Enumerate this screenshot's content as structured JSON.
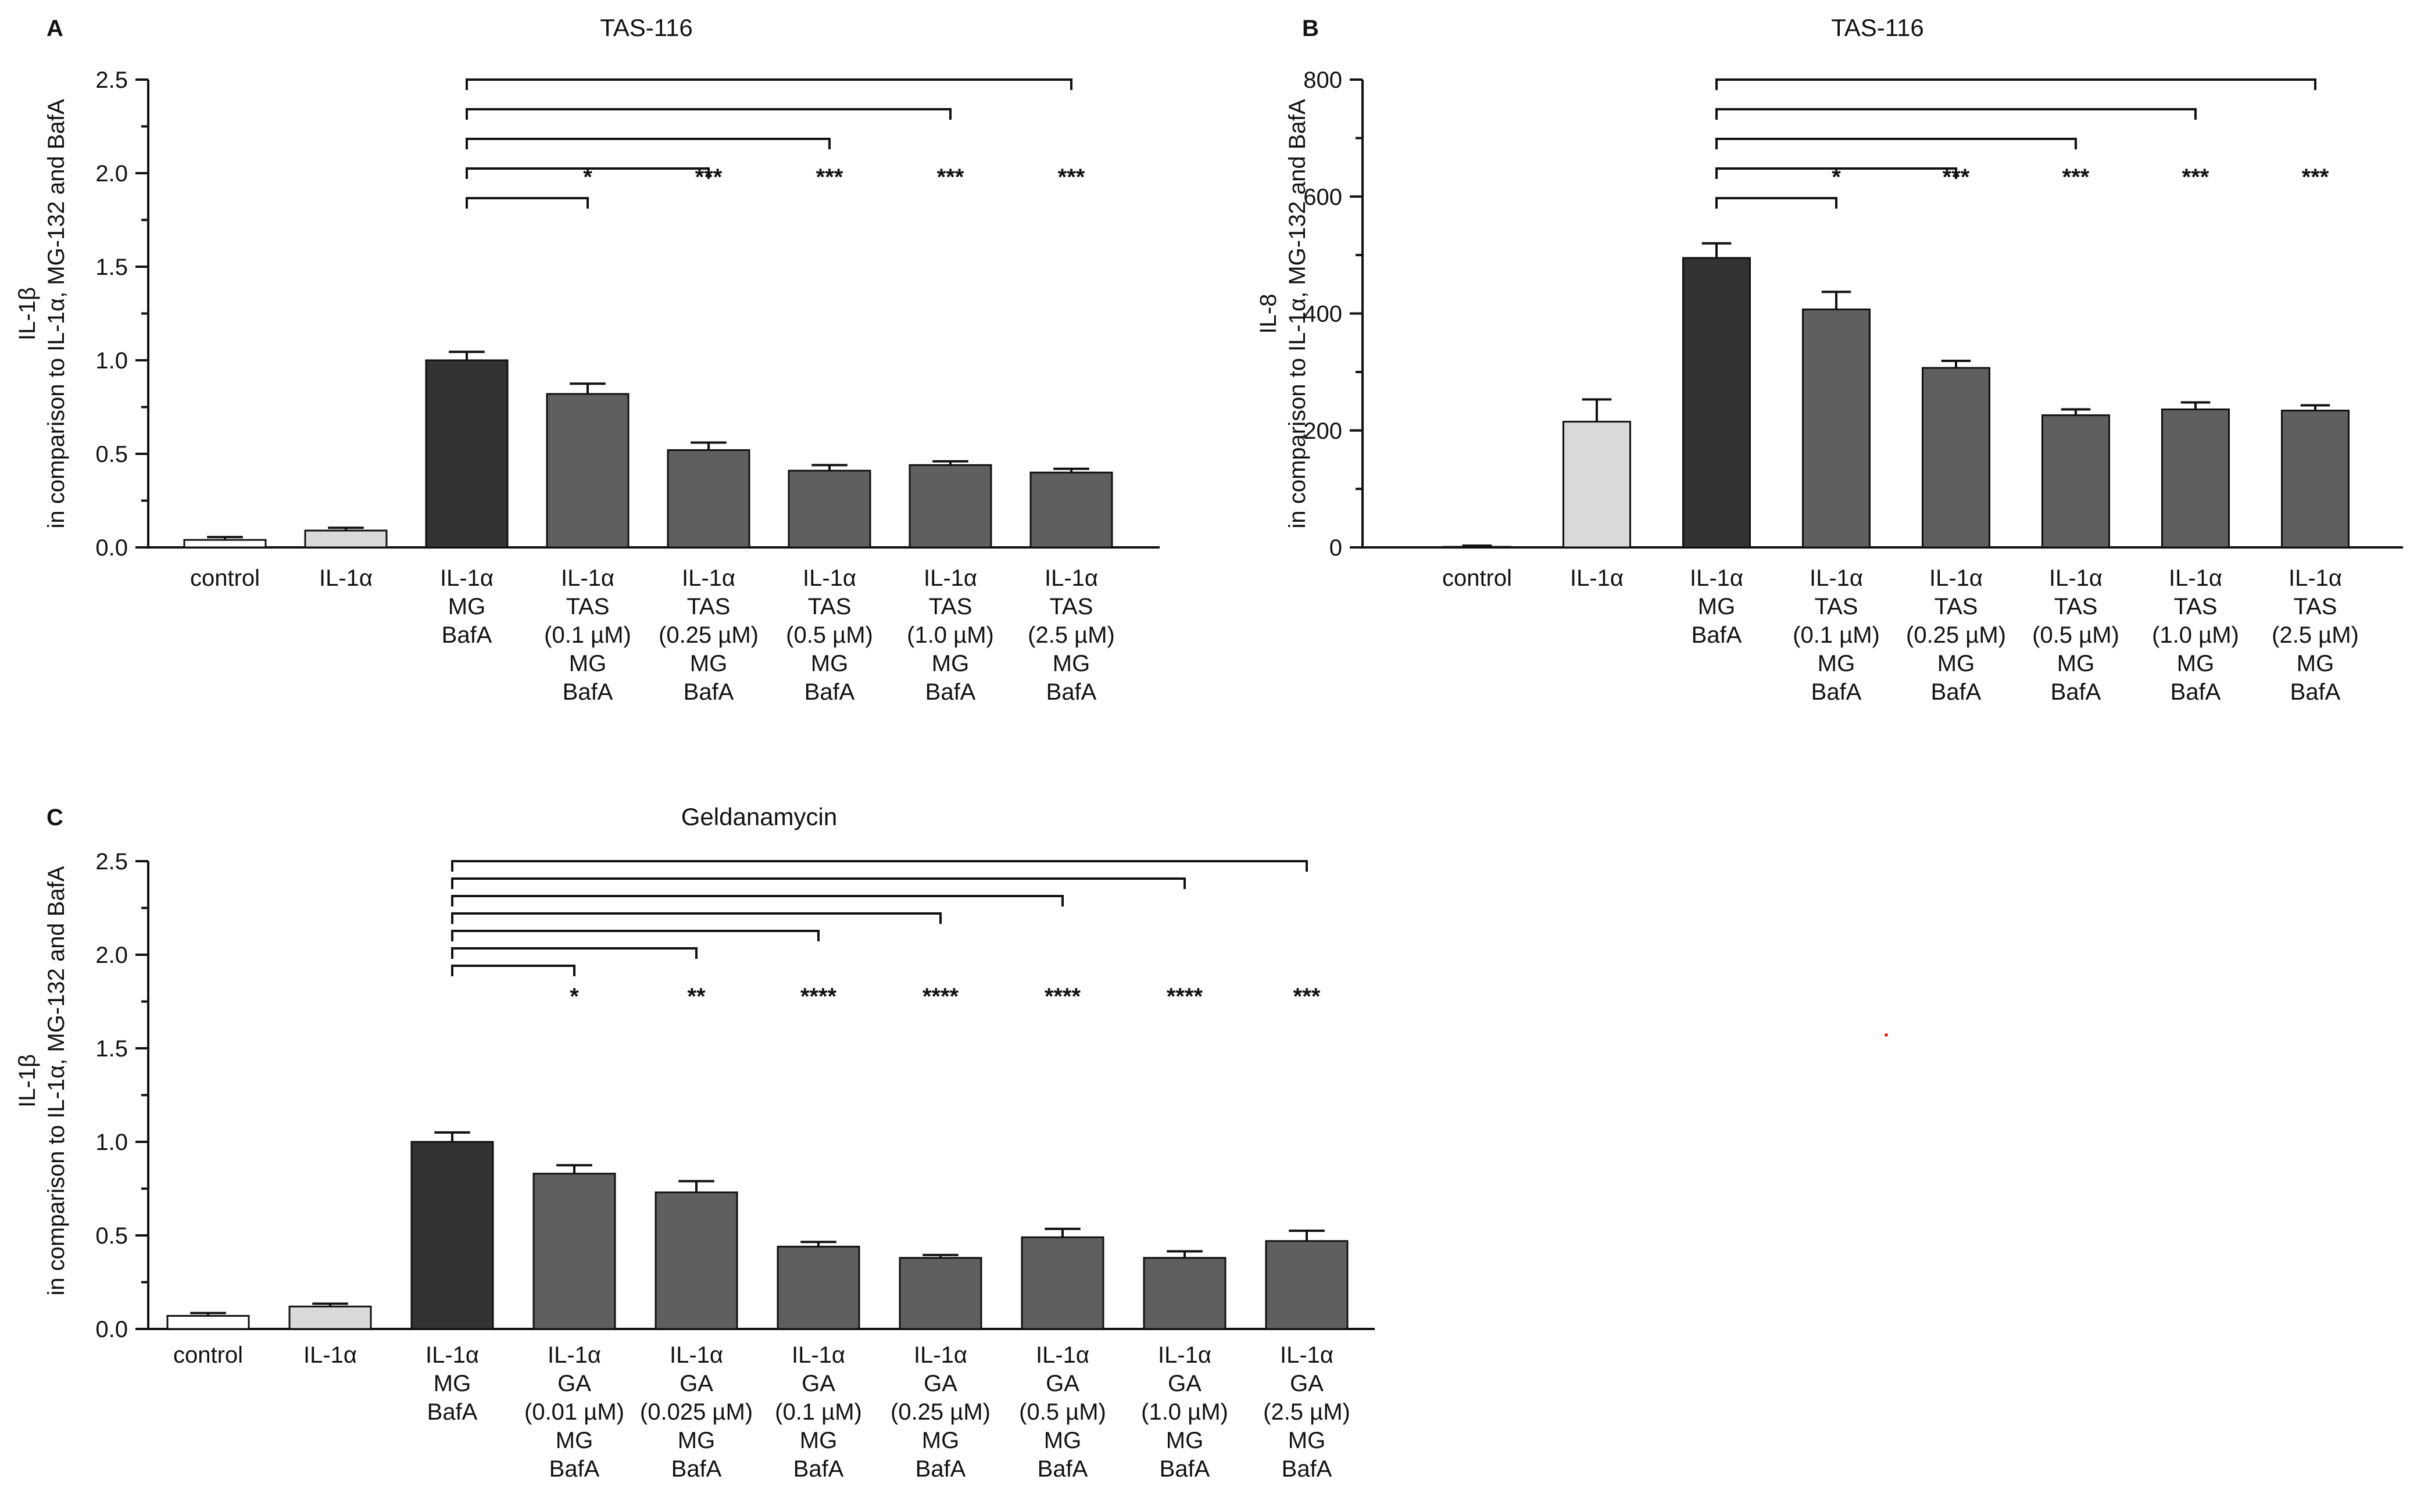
{
  "chart_data": [
    {
      "panel": "A",
      "type": "bar",
      "title": "TAS-116",
      "ylabel": [
        "IL-1β",
        "in comparison to IL-1α, MG-132 and BafA"
      ],
      "ylim": [
        0,
        2.5
      ],
      "yticks": [
        "0.0",
        "0.5",
        "1.0",
        "1.5",
        "2.0",
        "2.5"
      ],
      "categories": [
        [
          "control"
        ],
        [
          "IL-1α"
        ],
        [
          "IL-1α",
          "MG",
          "BafA"
        ],
        [
          "IL-1α",
          "TAS",
          "(0.1 µM)",
          "MG",
          "BafA"
        ],
        [
          "IL-1α",
          "TAS",
          "(0.25 µM)",
          "MG",
          "BafA"
        ],
        [
          "IL-1α",
          "TAS",
          "(0.5 µM)",
          "MG",
          "BafA"
        ],
        [
          "IL-1α",
          "TAS",
          "(1.0 µM)",
          "MG",
          "BafA"
        ],
        [
          "IL-1α",
          "TAS",
          "(2.5 µM)",
          "MG",
          "BafA"
        ]
      ],
      "values": [
        0.04,
        0.09,
        1.0,
        0.82,
        0.52,
        0.41,
        0.44,
        0.4
      ],
      "errors": [
        0.015,
        0.015,
        0.045,
        0.055,
        0.04,
        0.03,
        0.02,
        0.02
      ],
      "bar_colors": [
        "#ffffff",
        "#d9d9d9",
        "#333333",
        "#5f5f5f",
        "#5f5f5f",
        "#5f5f5f",
        "#5f5f5f",
        "#5f5f5f"
      ],
      "significance": [
        "",
        "",
        "",
        "*",
        "***",
        "***",
        "***",
        "***"
      ],
      "comparisons": [
        [
          2,
          3
        ],
        [
          2,
          4
        ],
        [
          2,
          5
        ],
        [
          2,
          6
        ],
        [
          2,
          7
        ]
      ]
    },
    {
      "panel": "B",
      "type": "bar",
      "title": "TAS-116",
      "ylabel": [
        "IL-8",
        "in comparison to IL-1α, MG-132 and BafA"
      ],
      "ylim": [
        0,
        800
      ],
      "yticks": [
        "0",
        "200",
        "400",
        "600",
        "800"
      ],
      "categories": [
        [
          "control"
        ],
        [
          "IL-1α"
        ],
        [
          "IL-1α",
          "MG",
          "BafA"
        ],
        [
          "IL-1α",
          "TAS",
          "(0.1 µM)",
          "MG",
          "BafA"
        ],
        [
          "IL-1α",
          "TAS",
          "(0.25 µM)",
          "MG",
          "BafA"
        ],
        [
          "IL-1α",
          "TAS",
          "(0.5 µM)",
          "MG",
          "BafA"
        ],
        [
          "IL-1α",
          "TAS",
          "(1.0 µM)",
          "MG",
          "BafA"
        ],
        [
          "IL-1α",
          "TAS",
          "(2.5 µM)",
          "MG",
          "BafA"
        ]
      ],
      "values": [
        1,
        215,
        495,
        407,
        307,
        226,
        236,
        234
      ],
      "errors": [
        2,
        38,
        25,
        30,
        12,
        10,
        12,
        9
      ],
      "bar_colors": [
        "#ffffff",
        "#d9d9d9",
        "#333333",
        "#5f5f5f",
        "#5f5f5f",
        "#5f5f5f",
        "#5f5f5f",
        "#5f5f5f"
      ],
      "significance": [
        "",
        "",
        "",
        "*",
        "***",
        "***",
        "***",
        "***"
      ],
      "comparisons": [
        [
          2,
          3
        ],
        [
          2,
          4
        ],
        [
          2,
          5
        ],
        [
          2,
          6
        ],
        [
          2,
          7
        ]
      ]
    },
    {
      "panel": "C",
      "type": "bar",
      "title": "Geldanamycin",
      "ylabel": [
        "IL-1β",
        "in comparison to IL-1α, MG-132 and BafA"
      ],
      "ylim": [
        0,
        2.5
      ],
      "yticks": [
        "0.0",
        "0.5",
        "1.0",
        "1.5",
        "2.0",
        "2.5"
      ],
      "categories": [
        [
          "control"
        ],
        [
          "IL-1α"
        ],
        [
          "IL-1α",
          "MG",
          "BafA"
        ],
        [
          "IL-1α",
          "GA",
          "(0.01 µM)",
          "MG",
          "BafA"
        ],
        [
          "IL-1α",
          "GA",
          "(0.025 µM)",
          "MG",
          "BafA"
        ],
        [
          "IL-1α",
          "GA",
          "(0.1 µM)",
          "MG",
          "BafA"
        ],
        [
          "IL-1α",
          "GA",
          "(0.25 µM)",
          "MG",
          "BafA"
        ],
        [
          "IL-1α",
          "GA",
          "(0.5 µM)",
          "MG",
          "BafA"
        ],
        [
          "IL-1α",
          "GA",
          "(1.0 µM)",
          "MG",
          "BafA"
        ],
        [
          "IL-1α",
          "GA",
          "(2.5 µM)",
          "MG",
          "BafA"
        ]
      ],
      "values": [
        0.07,
        0.12,
        1.0,
        0.83,
        0.73,
        0.44,
        0.38,
        0.49,
        0.38,
        0.47
      ],
      "errors": [
        0.015,
        0.015,
        0.05,
        0.045,
        0.06,
        0.025,
        0.015,
        0.045,
        0.035,
        0.055
      ],
      "bar_colors": [
        "#ffffff",
        "#d9d9d9",
        "#333333",
        "#5f5f5f",
        "#5f5f5f",
        "#5f5f5f",
        "#5f5f5f",
        "#5f5f5f",
        "#5f5f5f",
        "#5f5f5f"
      ],
      "significance": [
        "",
        "",
        "",
        "*",
        "**",
        "****",
        "****",
        "****",
        "****",
        "***"
      ],
      "comparisons": [
        [
          2,
          3
        ],
        [
          2,
          4
        ],
        [
          2,
          5
        ],
        [
          2,
          6
        ],
        [
          2,
          7
        ],
        [
          2,
          8
        ],
        [
          2,
          9
        ]
      ]
    }
  ]
}
